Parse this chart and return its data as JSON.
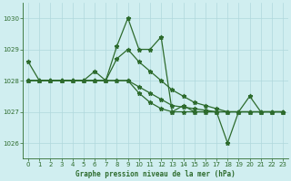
{
  "title": "Graphe pression niveau de la mer (hPa)",
  "background_color": "#d0eef0",
  "grid_color": "#b0d8dc",
  "line_color": "#2d6b2d",
  "xlim": [
    -0.5,
    23.5
  ],
  "ylim": [
    1025.5,
    1030.5
  ],
  "yticks": [
    1026,
    1027,
    1028,
    1029,
    1030
  ],
  "xticks": [
    0,
    1,
    2,
    3,
    4,
    5,
    6,
    7,
    8,
    9,
    10,
    11,
    12,
    13,
    14,
    15,
    16,
    17,
    18,
    19,
    20,
    21,
    22,
    23
  ],
  "s1": [
    1028.6,
    1028.0,
    1028.0,
    1028.0,
    1028.0,
    1028.0,
    1028.3,
    1028.0,
    1029.1,
    1030.0,
    1029.0,
    1029.0,
    1029.4,
    1027.0,
    1027.2,
    1027.0,
    1027.0,
    1027.0,
    1026.0,
    1027.0,
    1027.5,
    1027.0,
    1027.0,
    1027.0
  ],
  "s2": [
    1028.0,
    1028.0,
    1028.0,
    1028.0,
    1028.0,
    1028.0,
    1028.0,
    1028.0,
    1028.7,
    1029.0,
    1028.6,
    1028.3,
    1028.0,
    1027.7,
    1027.5,
    1027.3,
    1027.2,
    1027.1,
    1027.0,
    1027.0,
    1027.0,
    1027.0,
    1027.0,
    1027.0
  ],
  "s3": [
    1028.0,
    1028.0,
    1028.0,
    1028.0,
    1028.0,
    1028.0,
    1028.0,
    1028.0,
    1028.0,
    1028.0,
    1027.8,
    1027.6,
    1027.4,
    1027.2,
    1027.15,
    1027.1,
    1027.05,
    1027.0,
    1027.0,
    1027.0,
    1027.0,
    1027.0,
    1027.0,
    1027.0
  ],
  "s4": [
    1028.0,
    1028.0,
    1028.0,
    1028.0,
    1028.0,
    1028.0,
    1028.0,
    1028.0,
    1028.0,
    1028.0,
    1027.6,
    1027.3,
    1027.1,
    1027.0,
    1027.0,
    1027.0,
    1027.0,
    1027.0,
    1027.0,
    1027.0,
    1027.0,
    1027.0,
    1027.0,
    1027.0
  ]
}
